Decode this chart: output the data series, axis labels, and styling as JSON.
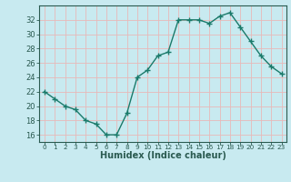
{
  "xlabel": "Humidex (Indice chaleur)",
  "x": [
    0,
    1,
    2,
    3,
    4,
    5,
    6,
    7,
    8,
    9,
    10,
    11,
    12,
    13,
    14,
    15,
    16,
    17,
    18,
    19,
    20,
    21,
    22,
    23
  ],
  "y": [
    22,
    21,
    20,
    19.5,
    18,
    17.5,
    16,
    16,
    19,
    24,
    25,
    27,
    27.5,
    32,
    32,
    32,
    31.5,
    32.5,
    33,
    31,
    29,
    27,
    25.5,
    24.5
  ],
  "line_color": "#1a7a6a",
  "bg_color": "#c8eaf0",
  "grid_color": "#e8f8f8",
  "tick_color": "#2a5a50",
  "ylim": [
    15,
    34
  ],
  "yticks": [
    16,
    18,
    20,
    22,
    24,
    26,
    28,
    30,
    32
  ],
  "xlim": [
    -0.5,
    23.5
  ],
  "marker": "+"
}
